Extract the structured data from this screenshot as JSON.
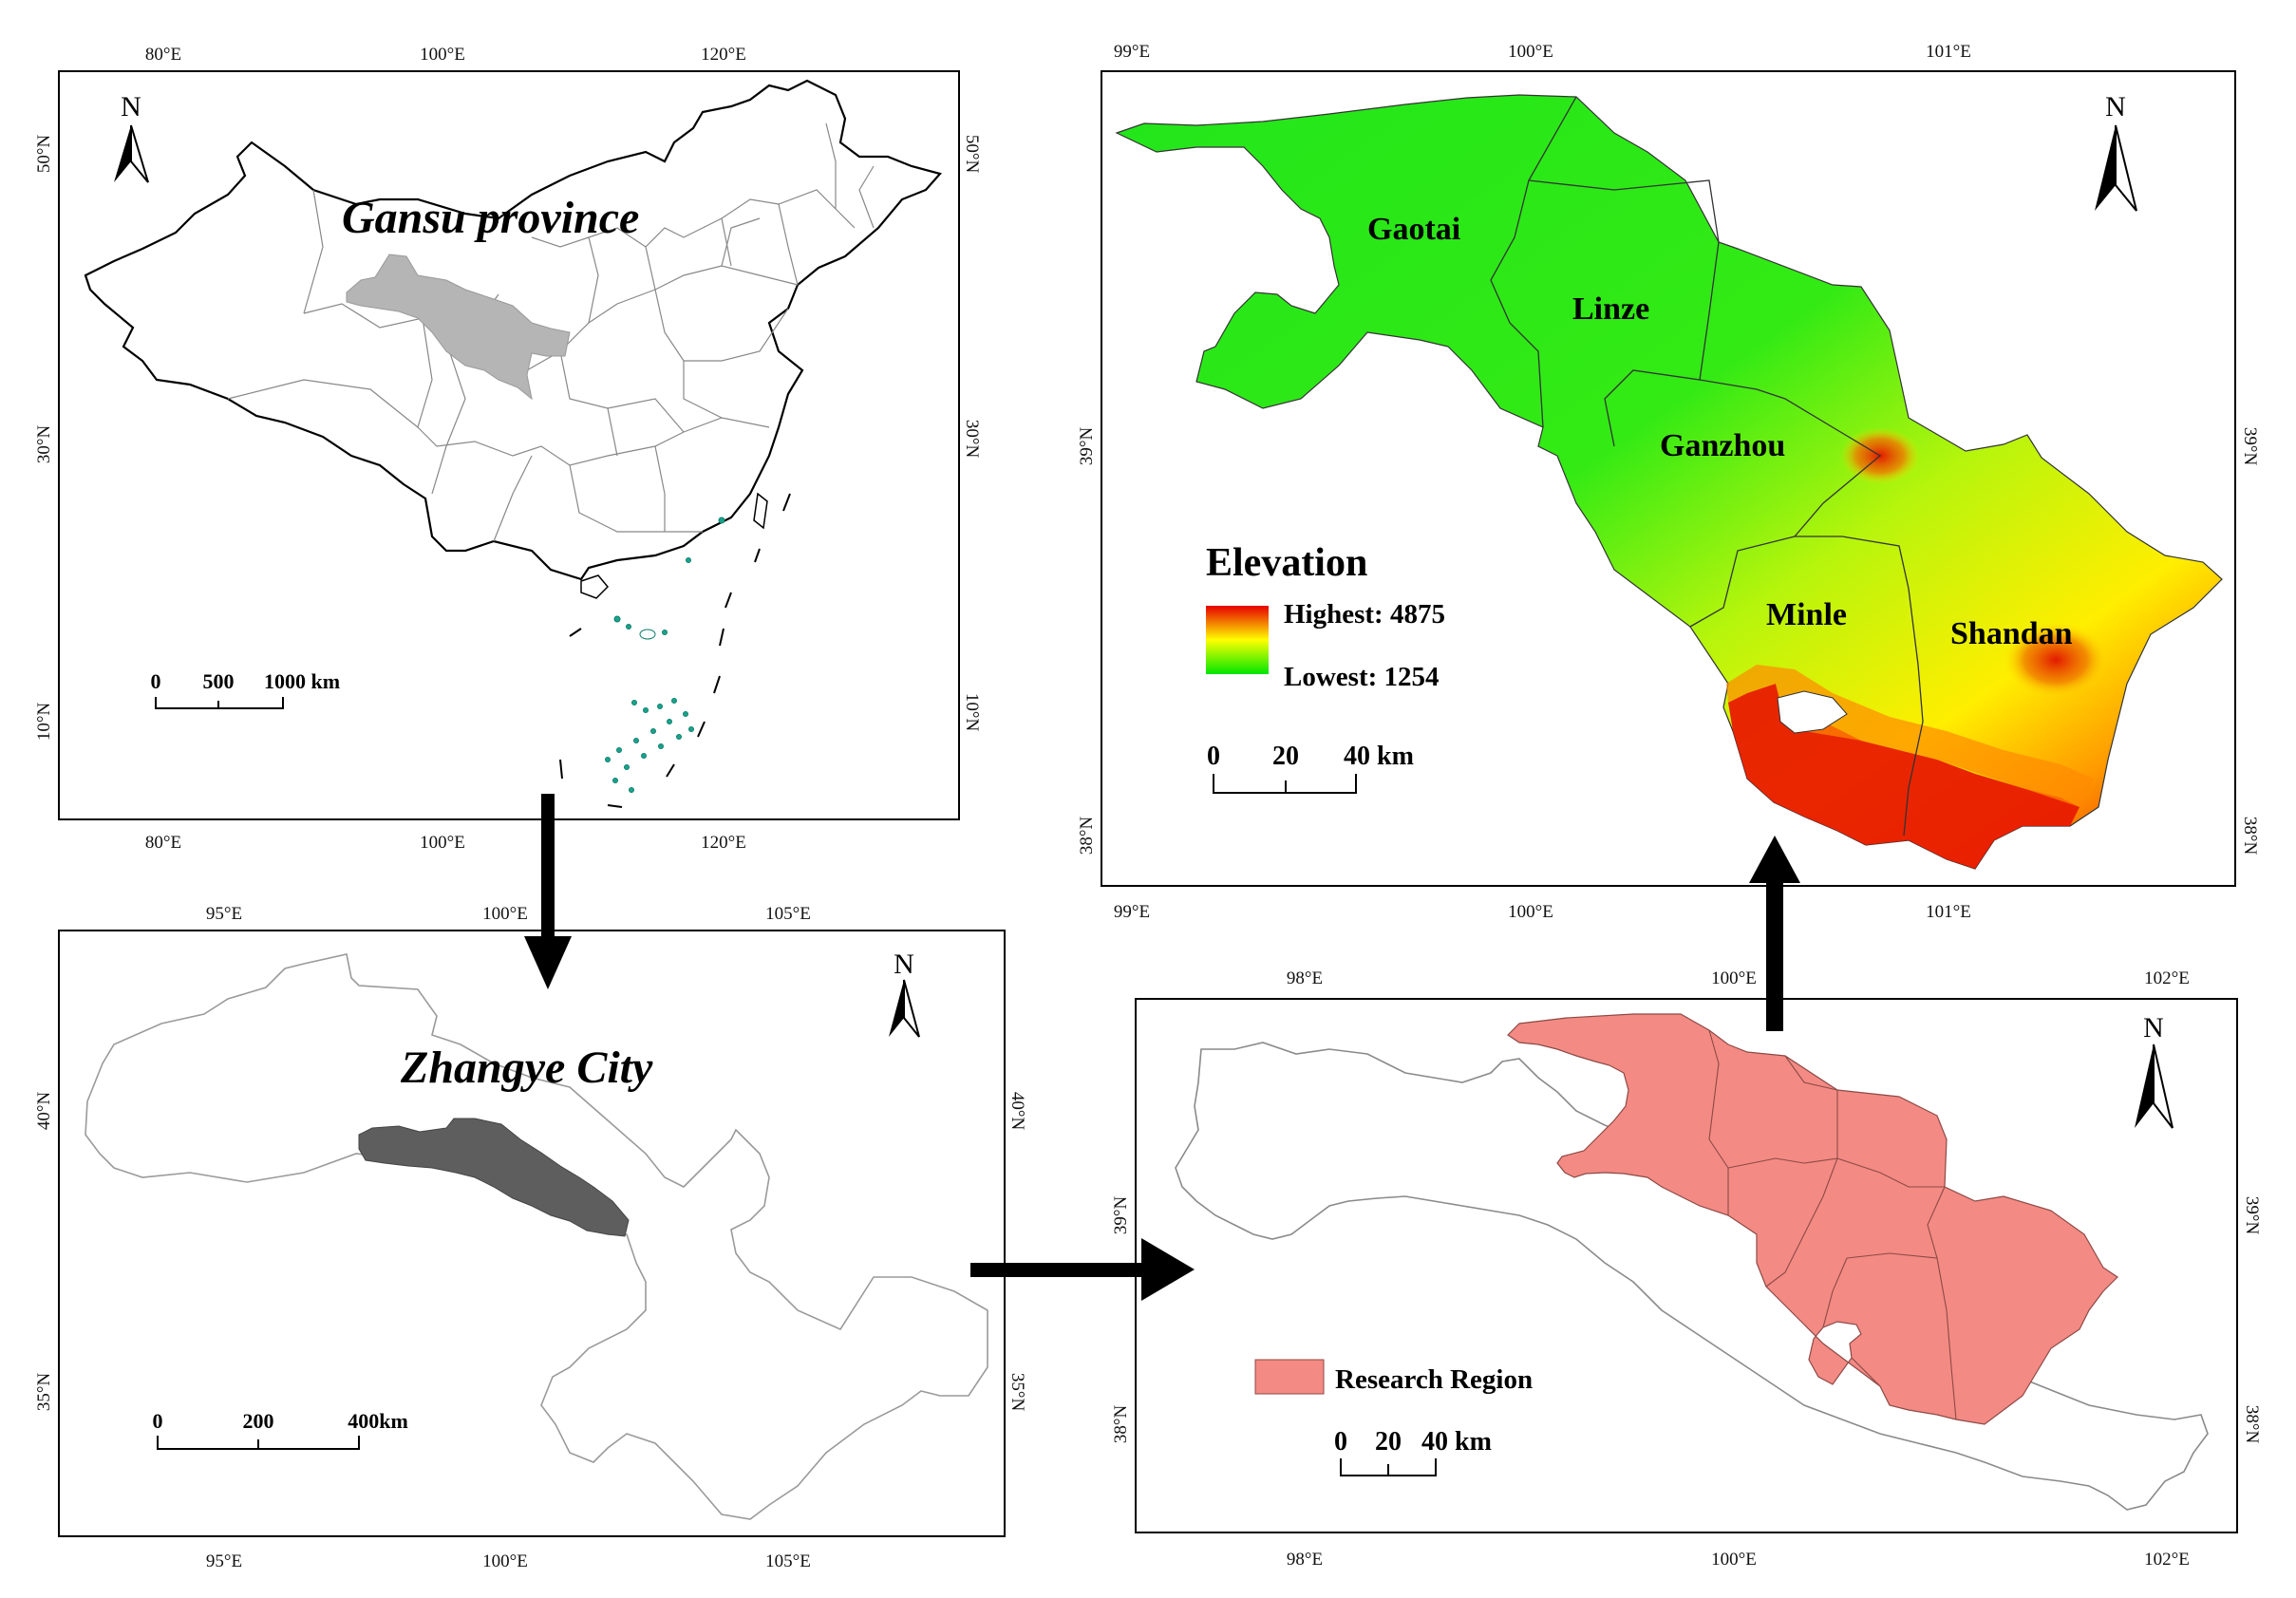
{
  "panels": {
    "china": {
      "title": "Gansu province",
      "top_ticks": [
        "80°E",
        "100°E",
        "120°E"
      ],
      "bottom_ticks": [
        "80°E",
        "100°E",
        "120°E"
      ],
      "left_ticks": [
        "50°N",
        "30°N",
        "10°N"
      ],
      "right_ticks": [
        "50°N",
        "30°N",
        "10°N"
      ],
      "north": "N",
      "scale": [
        "0",
        "500",
        "1000 km"
      ]
    },
    "gansu": {
      "title": "Zhangye City",
      "top_ticks": [
        "95°E",
        "100°E",
        "105°E"
      ],
      "bottom_ticks": [
        "95°E",
        "100°E",
        "105°E"
      ],
      "left_ticks": [
        "40°N",
        "35°N"
      ],
      "right_ticks": [
        "40°N",
        "35°N"
      ],
      "north": "N",
      "scale": [
        "0",
        "200",
        "400km"
      ]
    },
    "elevation": {
      "top_ticks": [
        "99°E",
        "100°E",
        "101°E"
      ],
      "bottom_ticks": [
        "99°E",
        "100°E",
        "101°E"
      ],
      "left_ticks": [
        "39°N",
        "38°N"
      ],
      "right_ticks": [
        "39°N",
        "38°N"
      ],
      "north": "N",
      "counties": [
        "Gaotai",
        "Linze",
        "Ganzhou",
        "Minle",
        "Shandan"
      ],
      "legend_title": "Elevation",
      "legend_high": "Highest: 4875",
      "legend_low": "Lowest: 1254",
      "scale": [
        "0",
        "20",
        "40 km"
      ],
      "gradient_colors": [
        "#e60000",
        "#ffff00",
        "#00e600"
      ]
    },
    "zhangye": {
      "top_ticks": [
        "98°E",
        "100°E",
        "102°E"
      ],
      "bottom_ticks": [
        "98°E",
        "100°E",
        "102°E"
      ],
      "left_ticks": [
        "39°N",
        "38°N"
      ],
      "right_ticks": [
        "39°N",
        "38°N"
      ],
      "north": "N",
      "legend_label": "Research Region",
      "scale": [
        "0",
        "20",
        "40 km"
      ],
      "region_color": "#f48a84"
    }
  }
}
